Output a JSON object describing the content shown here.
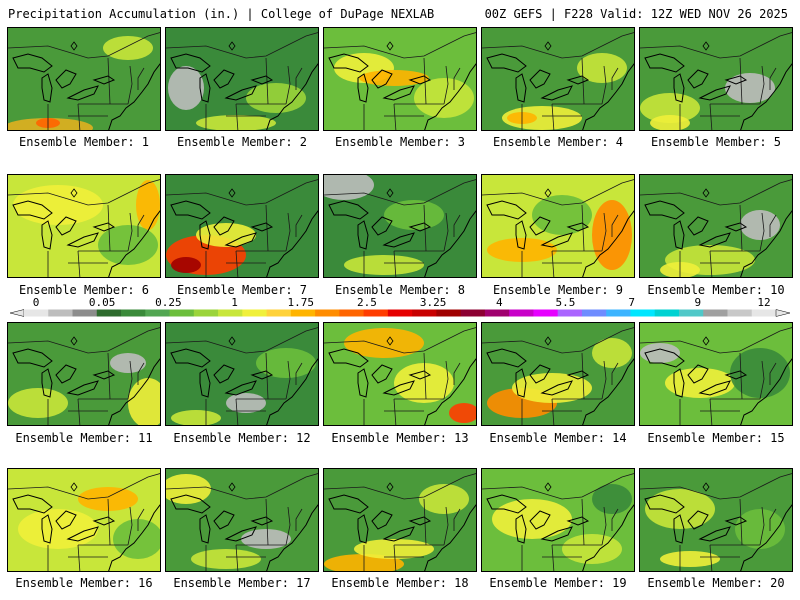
{
  "header": {
    "left_title": "Precipitation Accumulation (in.) | College of DuPage NEXLAB",
    "right_title": "00Z GEFS | F228 Valid: 12Z WED NOV 26 2025"
  },
  "colorbar": {
    "labels": [
      "0",
      "0.05",
      "0.25",
      "1",
      "1.75",
      "2.5",
      "3.25",
      "4",
      "5.5",
      "7",
      "9",
      "12"
    ],
    "colors": [
      "#e6e6e6",
      "#bdbdbd",
      "#8c8c8c",
      "#2e6b2e",
      "#3a8a3a",
      "#52a652",
      "#6cbe3c",
      "#9bd43a",
      "#c8e63a",
      "#f0f03a",
      "#ffd23a",
      "#ffb400",
      "#ff8c00",
      "#ff6400",
      "#ff3c00",
      "#e60000",
      "#c80000",
      "#a00000",
      "#8c0032",
      "#a0006e",
      "#c800c8",
      "#e600ff",
      "#aa64ff",
      "#6e8cff",
      "#3cb4ff",
      "#00e6ff",
      "#00d2d2",
      "#50c8c8",
      "#a0a0a0",
      "#c8c8c8",
      "#e6e6e6"
    ]
  },
  "members": [
    {
      "label": "Ensemble Member: 1",
      "base": "#4a9a3a",
      "blobs": [
        [
          "#e0b020",
          40,
          100,
          45,
          10
        ],
        [
          "#c8e63a",
          120,
          20,
          25,
          12
        ],
        [
          "#ff6400",
          40,
          95,
          12,
          5
        ]
      ]
    },
    {
      "label": "Ensemble Member: 2",
      "base": "#3a8a3a",
      "blobs": [
        [
          "#bdbdbd",
          20,
          60,
          18,
          22
        ],
        [
          "#9bd43a",
          110,
          70,
          30,
          15
        ],
        [
          "#c8e63a",
          70,
          95,
          40,
          8
        ]
      ]
    },
    {
      "label": "Ensemble Member: 3",
      "base": "#6cbe3c",
      "blobs": [
        [
          "#f0f03a",
          40,
          40,
          30,
          15
        ],
        [
          "#ffb400",
          70,
          50,
          35,
          8
        ],
        [
          "#c8e63a",
          120,
          70,
          30,
          20
        ]
      ]
    },
    {
      "label": "Ensemble Member: 4",
      "base": "#4a9a3a",
      "blobs": [
        [
          "#f0f03a",
          60,
          90,
          40,
          12
        ],
        [
          "#ffb400",
          40,
          90,
          15,
          6
        ],
        [
          "#c8e63a",
          120,
          40,
          25,
          15
        ]
      ]
    },
    {
      "label": "Ensemble Member: 5",
      "base": "#4a9a3a",
      "blobs": [
        [
          "#bdbdbd",
          110,
          60,
          25,
          15
        ],
        [
          "#c8e63a",
          30,
          80,
          30,
          15
        ],
        [
          "#f0f03a",
          30,
          95,
          20,
          8
        ]
      ]
    },
    {
      "label": "Ensemble Member: 6",
      "base": "#c8e63a",
      "blobs": [
        [
          "#f0f03a",
          50,
          30,
          45,
          20
        ],
        [
          "#ffb400",
          140,
          30,
          12,
          25
        ],
        [
          "#6cbe3c",
          120,
          70,
          30,
          20
        ]
      ]
    },
    {
      "label": "Ensemble Member: 7",
      "base": "#3a8a3a",
      "blobs": [
        [
          "#ff3c00",
          40,
          80,
          40,
          20
        ],
        [
          "#a00000",
          20,
          90,
          15,
          8
        ],
        [
          "#f0f03a",
          60,
          60,
          30,
          12
        ]
      ]
    },
    {
      "label": "Ensemble Member: 8",
      "base": "#3a8a3a",
      "blobs": [
        [
          "#bdbdbd",
          20,
          10,
          30,
          15
        ],
        [
          "#6cbe3c",
          90,
          40,
          30,
          15
        ],
        [
          "#c8e63a",
          60,
          90,
          40,
          10
        ]
      ]
    },
    {
      "label": "Ensemble Member: 9",
      "base": "#c8e63a",
      "blobs": [
        [
          "#ff8c00",
          130,
          60,
          20,
          35
        ],
        [
          "#ffb400",
          40,
          75,
          35,
          12
        ],
        [
          "#6cbe3c",
          80,
          40,
          30,
          20
        ]
      ]
    },
    {
      "label": "Ensemble Member: 10",
      "base": "#4a9a3a",
      "blobs": [
        [
          "#bdbdbd",
          120,
          50,
          20,
          15
        ],
        [
          "#c8e63a",
          70,
          85,
          45,
          15
        ],
        [
          "#f0f03a",
          40,
          95,
          20,
          8
        ]
      ]
    },
    {
      "label": "Ensemble Member: 11",
      "base": "#4a9a3a",
      "blobs": [
        [
          "#bdbdbd",
          120,
          40,
          18,
          10
        ],
        [
          "#f0f03a",
          140,
          80,
          20,
          25
        ],
        [
          "#c8e63a",
          30,
          80,
          30,
          15
        ]
      ]
    },
    {
      "label": "Ensemble Member: 12",
      "base": "#3a8a3a",
      "blobs": [
        [
          "#bdbdbd",
          80,
          80,
          20,
          10
        ],
        [
          "#6cbe3c",
          120,
          40,
          30,
          15
        ],
        [
          "#c8e63a",
          30,
          95,
          25,
          8
        ]
      ]
    },
    {
      "label": "Ensemble Member: 13",
      "base": "#6cbe3c",
      "blobs": [
        [
          "#ffb400",
          60,
          20,
          40,
          15
        ],
        [
          "#ff3c00",
          140,
          90,
          15,
          10
        ],
        [
          "#f0f03a",
          100,
          60,
          30,
          20
        ]
      ]
    },
    {
      "label": "Ensemble Member: 14",
      "base": "#4a9a3a",
      "blobs": [
        [
          "#ff8c00",
          40,
          80,
          35,
          15
        ],
        [
          "#f0f03a",
          70,
          65,
          40,
          15
        ],
        [
          "#c8e63a",
          130,
          30,
          20,
          15
        ]
      ]
    },
    {
      "label": "Ensemble Member: 15",
      "base": "#6cbe3c",
      "blobs": [
        [
          "#bdbdbd",
          20,
          30,
          20,
          10
        ],
        [
          "#f0f03a",
          60,
          60,
          35,
          15
        ],
        [
          "#3a8a3a",
          120,
          50,
          30,
          25
        ]
      ]
    },
    {
      "label": "Ensemble Member: 16",
      "base": "#c8e63a",
      "blobs": [
        [
          "#ffb400",
          100,
          30,
          30,
          12
        ],
        [
          "#f0f03a",
          50,
          60,
          40,
          20
        ],
        [
          "#6cbe3c",
          130,
          70,
          25,
          20
        ]
      ]
    },
    {
      "label": "Ensemble Member: 17",
      "base": "#4a9a3a",
      "blobs": [
        [
          "#bdbdbd",
          100,
          70,
          25,
          10
        ],
        [
          "#f0f03a",
          20,
          20,
          25,
          15
        ],
        [
          "#c8e63a",
          60,
          90,
          35,
          10
        ]
      ]
    },
    {
      "label": "Ensemble Member: 18",
      "base": "#4a9a3a",
      "blobs": [
        [
          "#ffb400",
          40,
          95,
          40,
          10
        ],
        [
          "#f0f03a",
          70,
          80,
          40,
          10
        ],
        [
          "#c8e63a",
          120,
          30,
          25,
          15
        ]
      ]
    },
    {
      "label": "Ensemble Member: 19",
      "base": "#6cbe3c",
      "blobs": [
        [
          "#f0f03a",
          50,
          50,
          40,
          20
        ],
        [
          "#c8e63a",
          110,
          80,
          30,
          15
        ],
        [
          "#3a8a3a",
          130,
          30,
          20,
          15
        ]
      ]
    },
    {
      "label": "Ensemble Member: 20",
      "base": "#4a9a3a",
      "blobs": [
        [
          "#c8e63a",
          40,
          40,
          35,
          20
        ],
        [
          "#f0f03a",
          50,
          90,
          30,
          8
        ],
        [
          "#6cbe3c",
          120,
          60,
          25,
          20
        ]
      ]
    }
  ]
}
